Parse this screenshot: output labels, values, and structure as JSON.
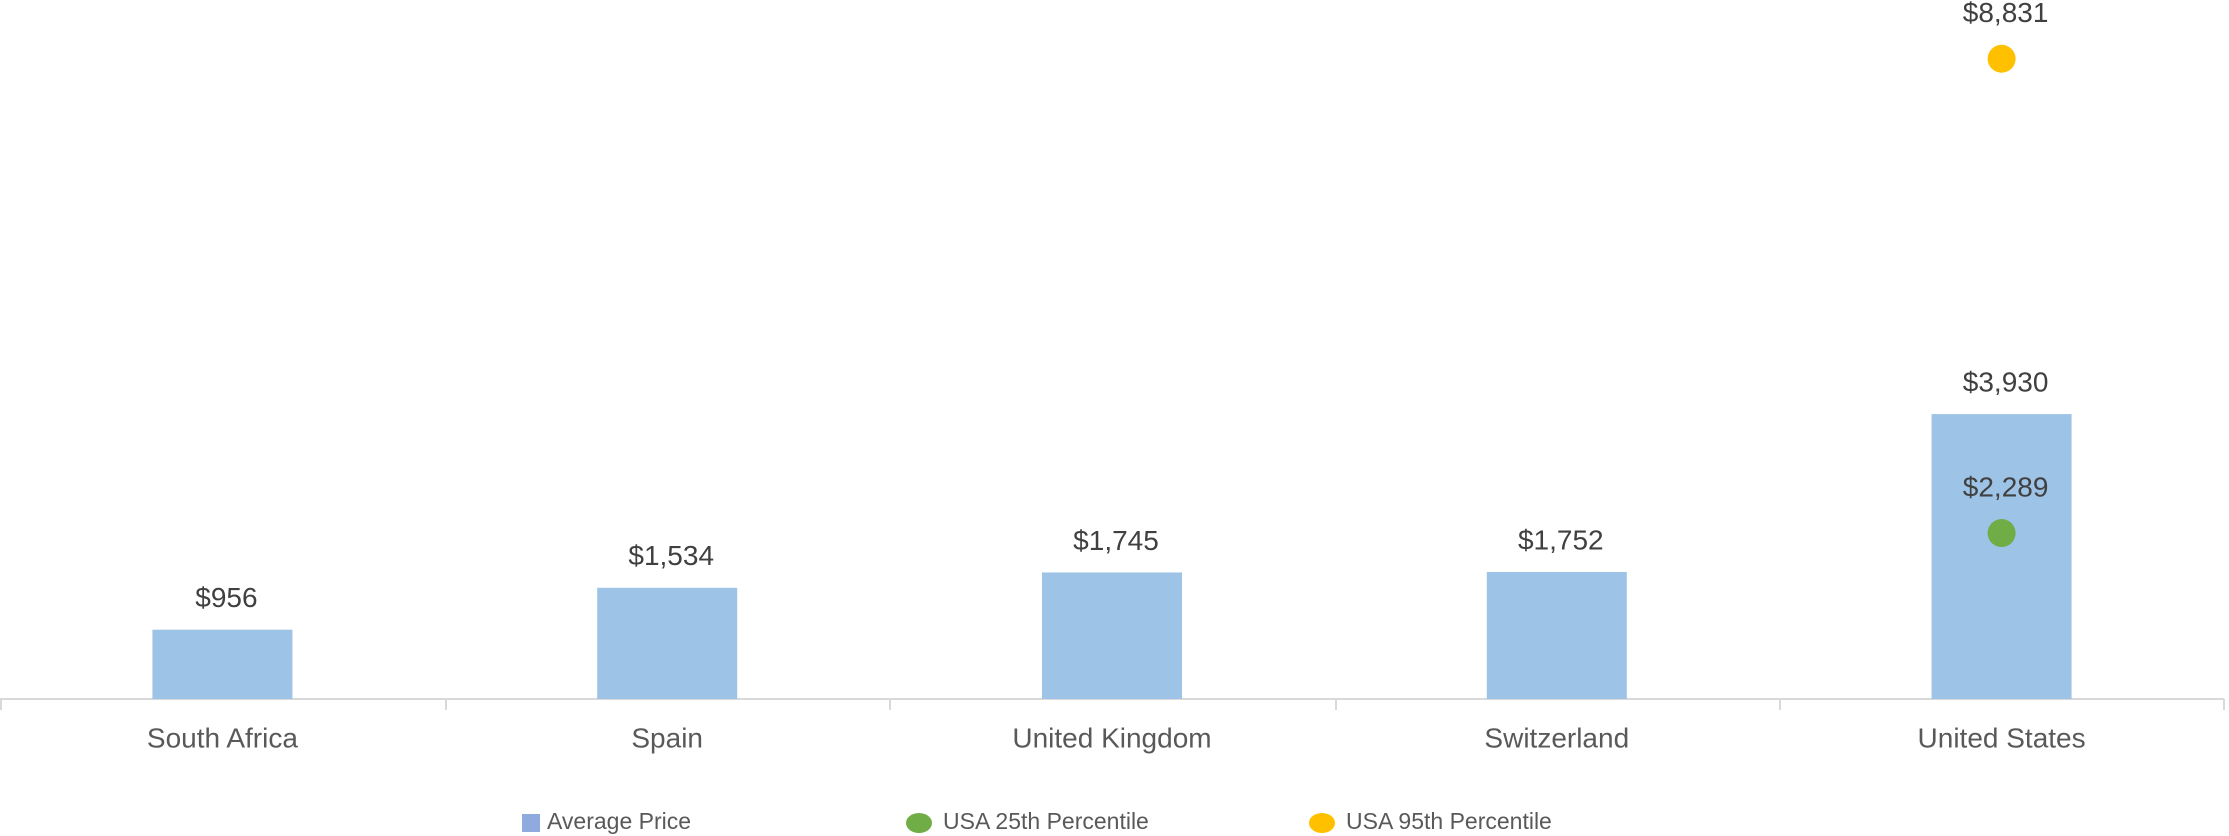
{
  "chart_data": {
    "type": "bar",
    "categories": [
      "South Africa",
      "Spain",
      "United Kingdom",
      "Switzerland",
      "United States"
    ],
    "series": [
      {
        "name": "Average Price",
        "type": "bar",
        "color": "#9dc3e6",
        "values": [
          956,
          1534,
          1745,
          1752,
          3930
        ],
        "value_labels": [
          "$956",
          "$1,534",
          "$1,745",
          "$1,752",
          "$3,930"
        ]
      },
      {
        "name": "USA 25th Percentile",
        "type": "scatter",
        "color": "#70ad47",
        "values": [
          null,
          null,
          null,
          null,
          2289
        ],
        "value_labels": [
          null,
          null,
          null,
          null,
          "$2,289"
        ]
      },
      {
        "name": "USA 95th Percentile",
        "type": "scatter",
        "color": "#ffc000",
        "values": [
          null,
          null,
          null,
          null,
          8831
        ],
        "value_labels": [
          null,
          null,
          null,
          null,
          "$8,831"
        ]
      }
    ],
    "ylim": [
      0,
      9600
    ],
    "legend": "bottom"
  }
}
